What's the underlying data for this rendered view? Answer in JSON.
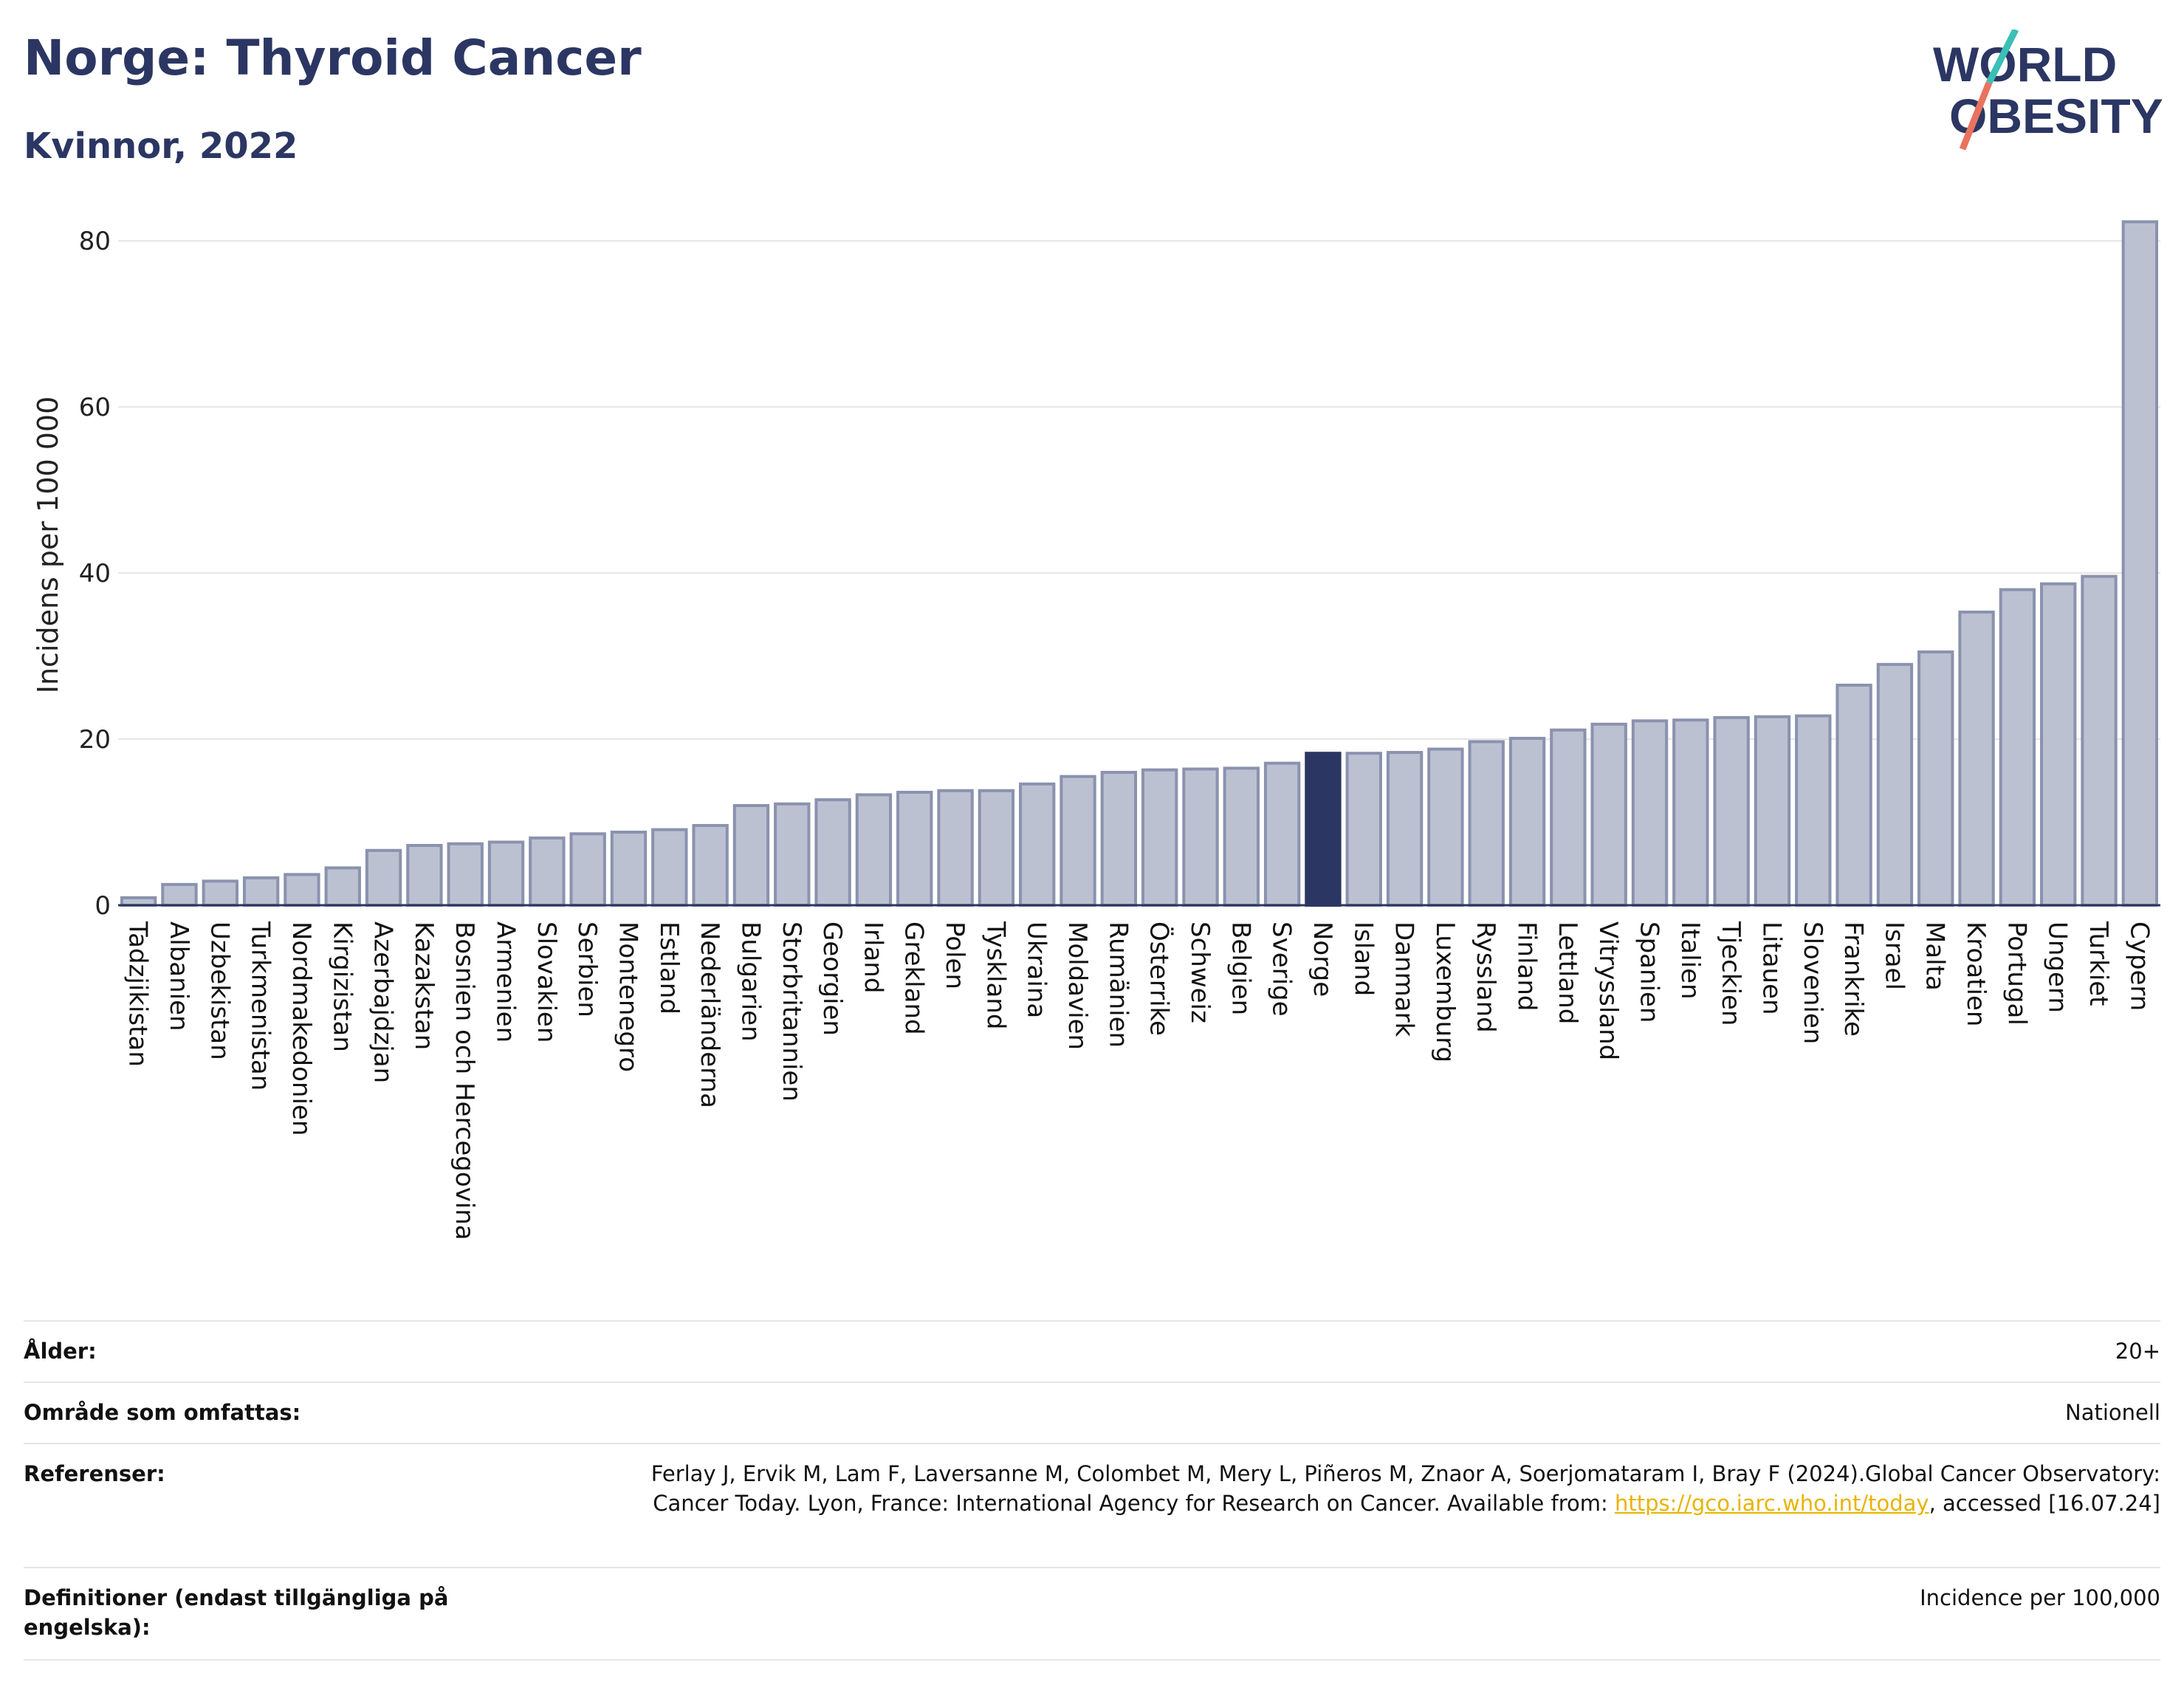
{
  "header": {
    "title": "Norge: Thyroid Cancer",
    "subtitle": "Kvinnor, 2022"
  },
  "logo": {
    "line1": "WORLD",
    "line2": "OBESITY",
    "colors": {
      "text": "#2b3663",
      "slash_teal": "#3bbfb6",
      "slash_red": "#e8735f"
    }
  },
  "colors": {
    "bar_default": "#bcc1d1",
    "bar_default_stroke": "#8a92ae",
    "bar_highlight": "#2b3663",
    "grid": "#e6e6e6",
    "axis": "#2b3663"
  },
  "chart_data": {
    "type": "bar",
    "title": "Norge: Thyroid Cancer",
    "subtitle": "Kvinnor, 2022",
    "ylabel": "Incidens per 100 000",
    "xlabel": "",
    "ylim": [
      0,
      85
    ],
    "yticks": [
      0,
      20,
      40,
      60,
      80
    ],
    "grid": true,
    "highlight": "Norge",
    "categories": [
      "Tadzjikistan",
      "Albanien",
      "Uzbekistan",
      "Turkmenistan",
      "Nordmakedonien",
      "Kirgizistan",
      "Azerbajdzjan",
      "Kazakstan",
      "Bosnien och Hercegovina",
      "Armenien",
      "Slovakien",
      "Serbien",
      "Montenegro",
      "Estland",
      "Nederländerna",
      "Bulgarien",
      "Storbritannien",
      "Georgien",
      "Irland",
      "Grekland",
      "Polen",
      "Tyskland",
      "Ukraina",
      "Moldavien",
      "Rumänien",
      "Österrike",
      "Schweiz",
      "Belgien",
      "Sverige",
      "Norge",
      "Island",
      "Danmark",
      "Luxemburg",
      "Ryssland",
      "Finland",
      "Lettland",
      "Vitryssland",
      "Spanien",
      "Italien",
      "Tjeckien",
      "Litauen",
      "Slovenien",
      "Frankrike",
      "Israel",
      "Malta",
      "Kroatien",
      "Portugal",
      "Ungern",
      "Turkiet",
      "Cypern"
    ],
    "values": [
      0.9,
      2.5,
      2.9,
      3.3,
      3.7,
      4.5,
      6.6,
      7.2,
      7.4,
      7.6,
      8.1,
      8.6,
      8.8,
      9.1,
      9.6,
      12.0,
      12.2,
      12.7,
      13.3,
      13.6,
      13.8,
      13.8,
      14.6,
      15.5,
      16.0,
      16.3,
      16.4,
      16.5,
      17.1,
      18.3,
      18.3,
      18.4,
      18.8,
      19.7,
      20.1,
      21.1,
      21.8,
      22.2,
      22.3,
      22.6,
      22.7,
      22.8,
      26.5,
      29.0,
      30.5,
      35.3,
      38.0,
      38.7,
      39.6,
      82.3
    ]
  },
  "info": {
    "rows": [
      {
        "key": "Ålder:",
        "value": "20+"
      },
      {
        "key": "Område som omfattas:",
        "value": "Nationell"
      },
      {
        "key": "Referenser:",
        "value_pre": "Ferlay J, Ervik M, Lam F, Laversanne M, Colombet M, Mery L, Piñeros M, Znaor A, Soerjomataram I, Bray F (2024).Global Cancer Observatory: Cancer Today. Lyon, France: International Agency for Research on Cancer. Available from: ",
        "link": "https://gco.iarc.who.int/today",
        "value_post": ", accessed [16.07.24]"
      },
      {
        "key": "Definitioner (endast tillgängliga på engelska):",
        "value": "Incidence per 100,000"
      }
    ]
  }
}
